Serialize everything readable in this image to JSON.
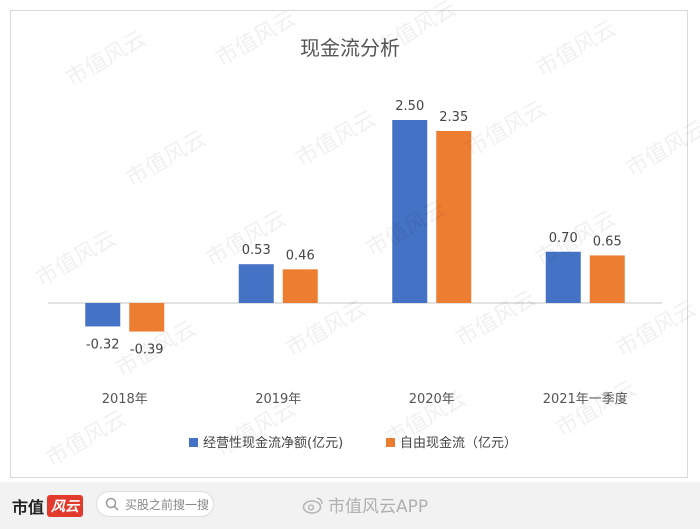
{
  "chart_data": {
    "type": "bar",
    "title": "现金流分析",
    "categories": [
      "2018年",
      "2019年",
      "2020年",
      "2021年一季度"
    ],
    "series": [
      {
        "name": "经营性现金流净额(亿元)",
        "color": "#4472C4",
        "values": [
          -0.32,
          0.53,
          2.5,
          0.7
        ],
        "labels": [
          "-0.32",
          "0.53",
          "2.50",
          "0.70"
        ]
      },
      {
        "name": "自由现金流（亿元）",
        "color": "#ED7D31",
        "values": [
          -0.39,
          0.46,
          2.35,
          0.65
        ],
        "labels": [
          "-0.39",
          "0.46",
          "2.35",
          "0.65"
        ]
      }
    ],
    "ylim": [
      -0.6,
      2.8
    ],
    "grid": false,
    "legend_position": "bottom"
  },
  "watermark_text": "市值风云",
  "footer": {
    "brand_text": "市值",
    "brand_mark_text": "风云",
    "search_placeholder": "买股之前搜一搜",
    "weibo_text": "市值风云APP",
    "search_icon": "search-icon",
    "weibo_icon": "weibo-icon"
  }
}
